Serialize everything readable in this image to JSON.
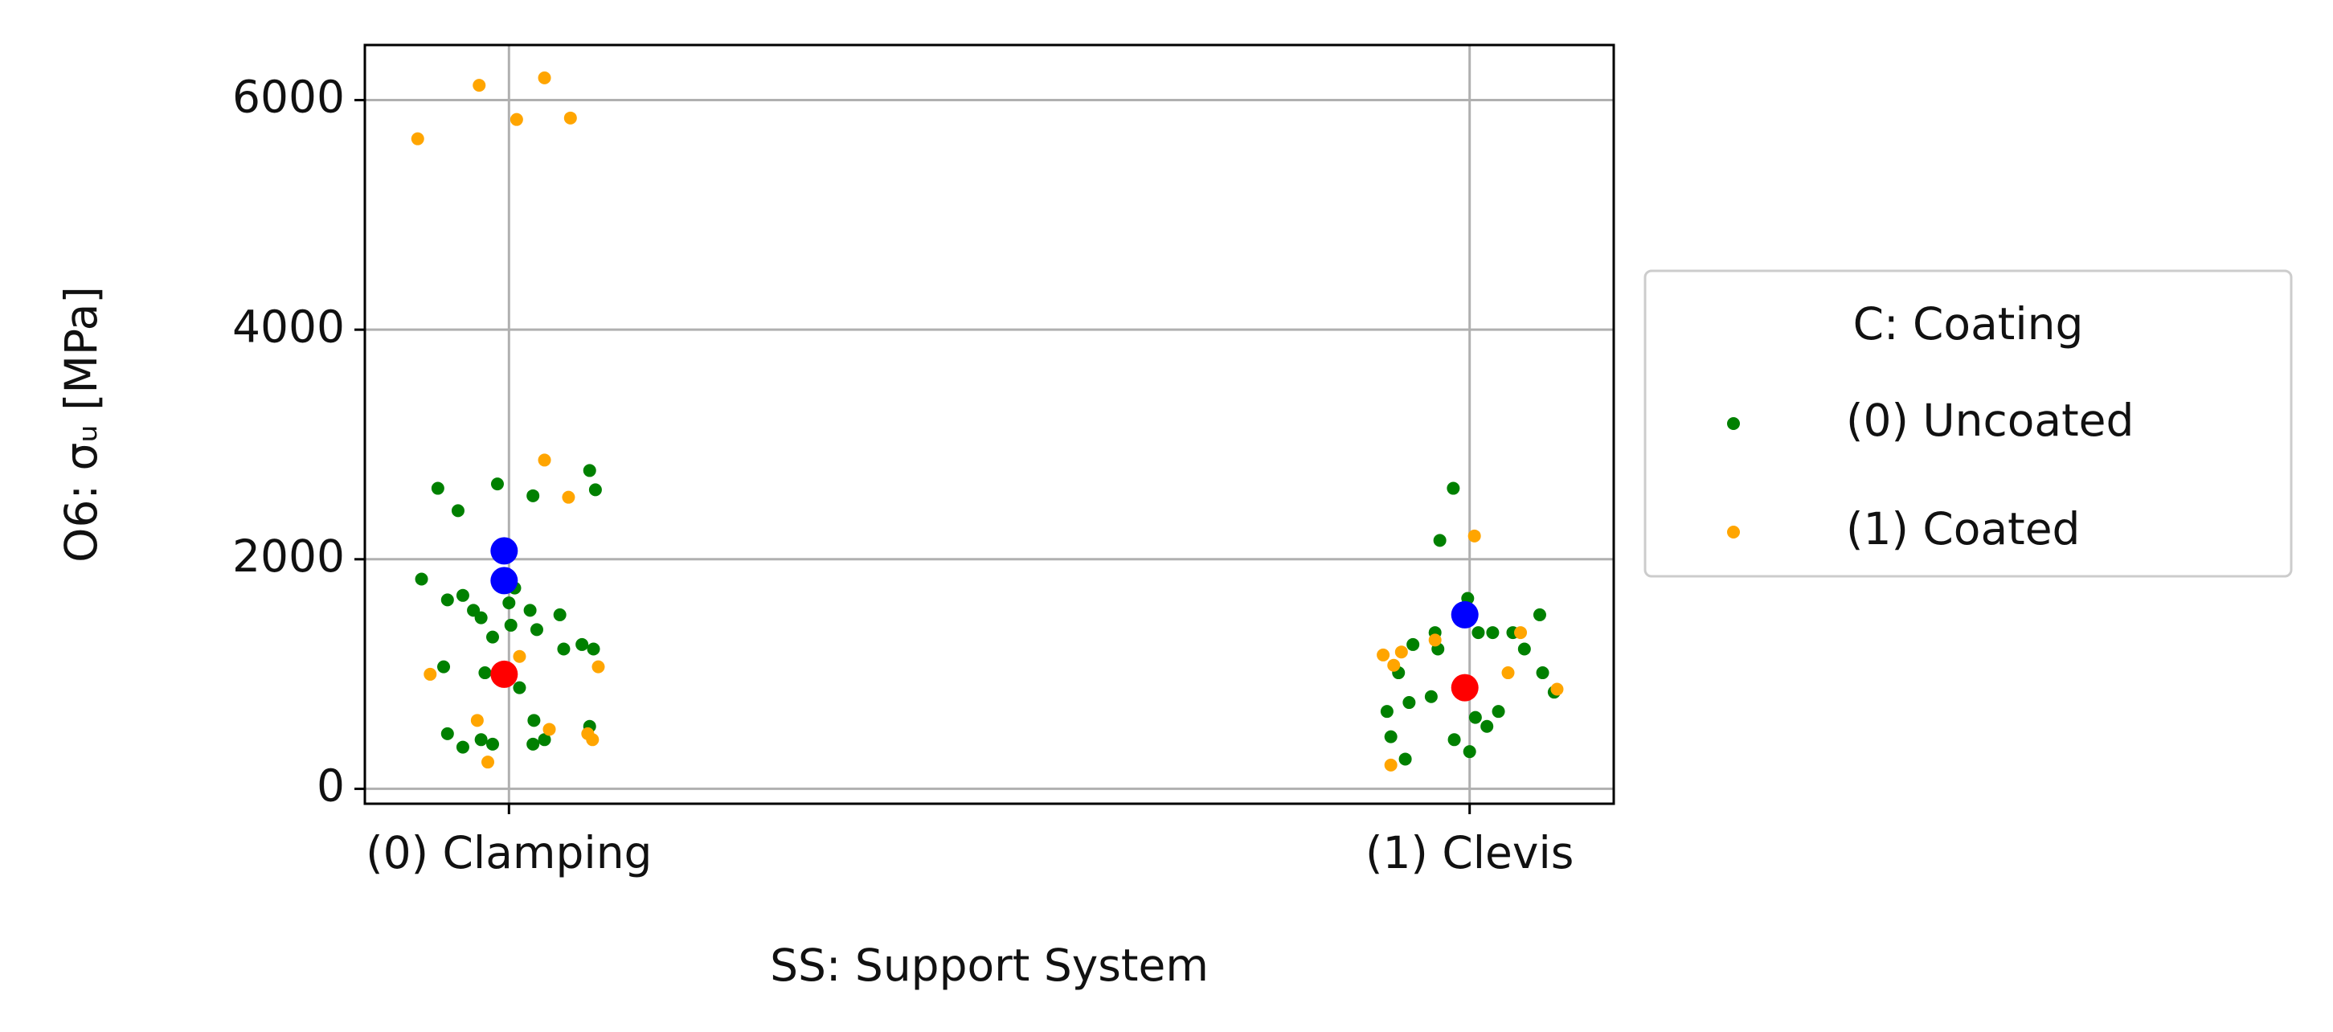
{
  "chart_data": {
    "type": "scatter",
    "xlabel": "SS: Support System",
    "ylabel": "O6: σᵤ [MPa]",
    "legend_title": "C: Coating",
    "legend_position": "right",
    "grid": true,
    "xlim": [
      -0.15,
      1.15
    ],
    "ylim": [
      -130,
      6480
    ],
    "xticks": [
      {
        "value": 0,
        "label": "(0) Clamping"
      },
      {
        "value": 1,
        "label": "(1) Clevis"
      }
    ],
    "yticks": [
      0,
      2000,
      4000,
      6000
    ],
    "series": [
      {
        "name": "(0) Uncoated",
        "color": "#008000",
        "marker_size": 8,
        "x": [
          -0.074,
          -0.053,
          -0.012,
          0.025,
          0.084,
          0.09,
          -0.091,
          -0.064,
          -0.048,
          -0.037,
          -0.029,
          -0.017,
          0,
          0.006,
          0.022,
          0.029,
          0.053,
          0.057,
          0.076,
          0.088,
          -0.068,
          -0.025,
          0.011,
          -0.064,
          -0.048,
          -0.029,
          -0.017,
          0.025,
          0.037,
          0.026,
          0.084,
          0.002,
          0.983,
          0.969,
          0.998,
          1.073,
          0.941,
          0.967,
          1.024,
          1.045,
          1.057,
          1.076,
          1.088,
          0.926,
          0.914,
          0.937,
          0.96,
          1.03,
          1.018,
          1.006,
          0.984,
          1.0,
          0.918,
          0.933,
          0.964,
          1.009
        ],
        "y": [
          2618,
          2423,
          2656,
          2553,
          2773,
          2605,
          1827,
          1646,
          1685,
          1555,
          1490,
          1322,
          1620,
          1749,
          1555,
          1387,
          1516,
          1218,
          1257,
          1218,
          1063,
          1011,
          881,
          480,
          363,
          428,
          389,
          389,
          428,
          596,
          544,
          1425,
          2618,
          2164,
          1659,
          1516,
          1257,
          1218,
          1361,
          1361,
          1218,
          1011,
          842,
          1011,
          674,
          752,
          803,
          674,
          544,
          622,
          428,
          324,
          454,
          259,
          1361,
          1361
        ]
      },
      {
        "name": "(1) Coated",
        "color": "#ffa500",
        "marker_size": 8,
        "x": [
          -0.095,
          -0.031,
          0.037,
          0.008,
          0.064,
          0.037,
          0.062,
          -0.082,
          0.011,
          0.093,
          -0.033,
          -0.022,
          0.042,
          0.082,
          0.087,
          1.005,
          0.91,
          0.921,
          0.929,
          1.053,
          1.04,
          1.091,
          0.918,
          0.964
        ],
        "y": [
          5663,
          6129,
          6194,
          5831,
          5844,
          2864,
          2540,
          998,
          1153,
          1063,
          596,
          233,
          518,
          480,
          428,
          2203,
          1166,
          1076,
          1192,
          1361,
          1011,
          868,
          207,
          1296
        ]
      },
      {
        "color": "#0000ff",
        "marker_size": 17,
        "x": [
          -0.005,
          -0.005,
          0.995
        ],
        "y": [
          2073,
          1814,
          1516
        ]
      },
      {
        "color": "#ff0000",
        "marker_size": 17,
        "x": [
          -0.005,
          0.995
        ],
        "y": [
          998,
          881
        ]
      }
    ]
  }
}
